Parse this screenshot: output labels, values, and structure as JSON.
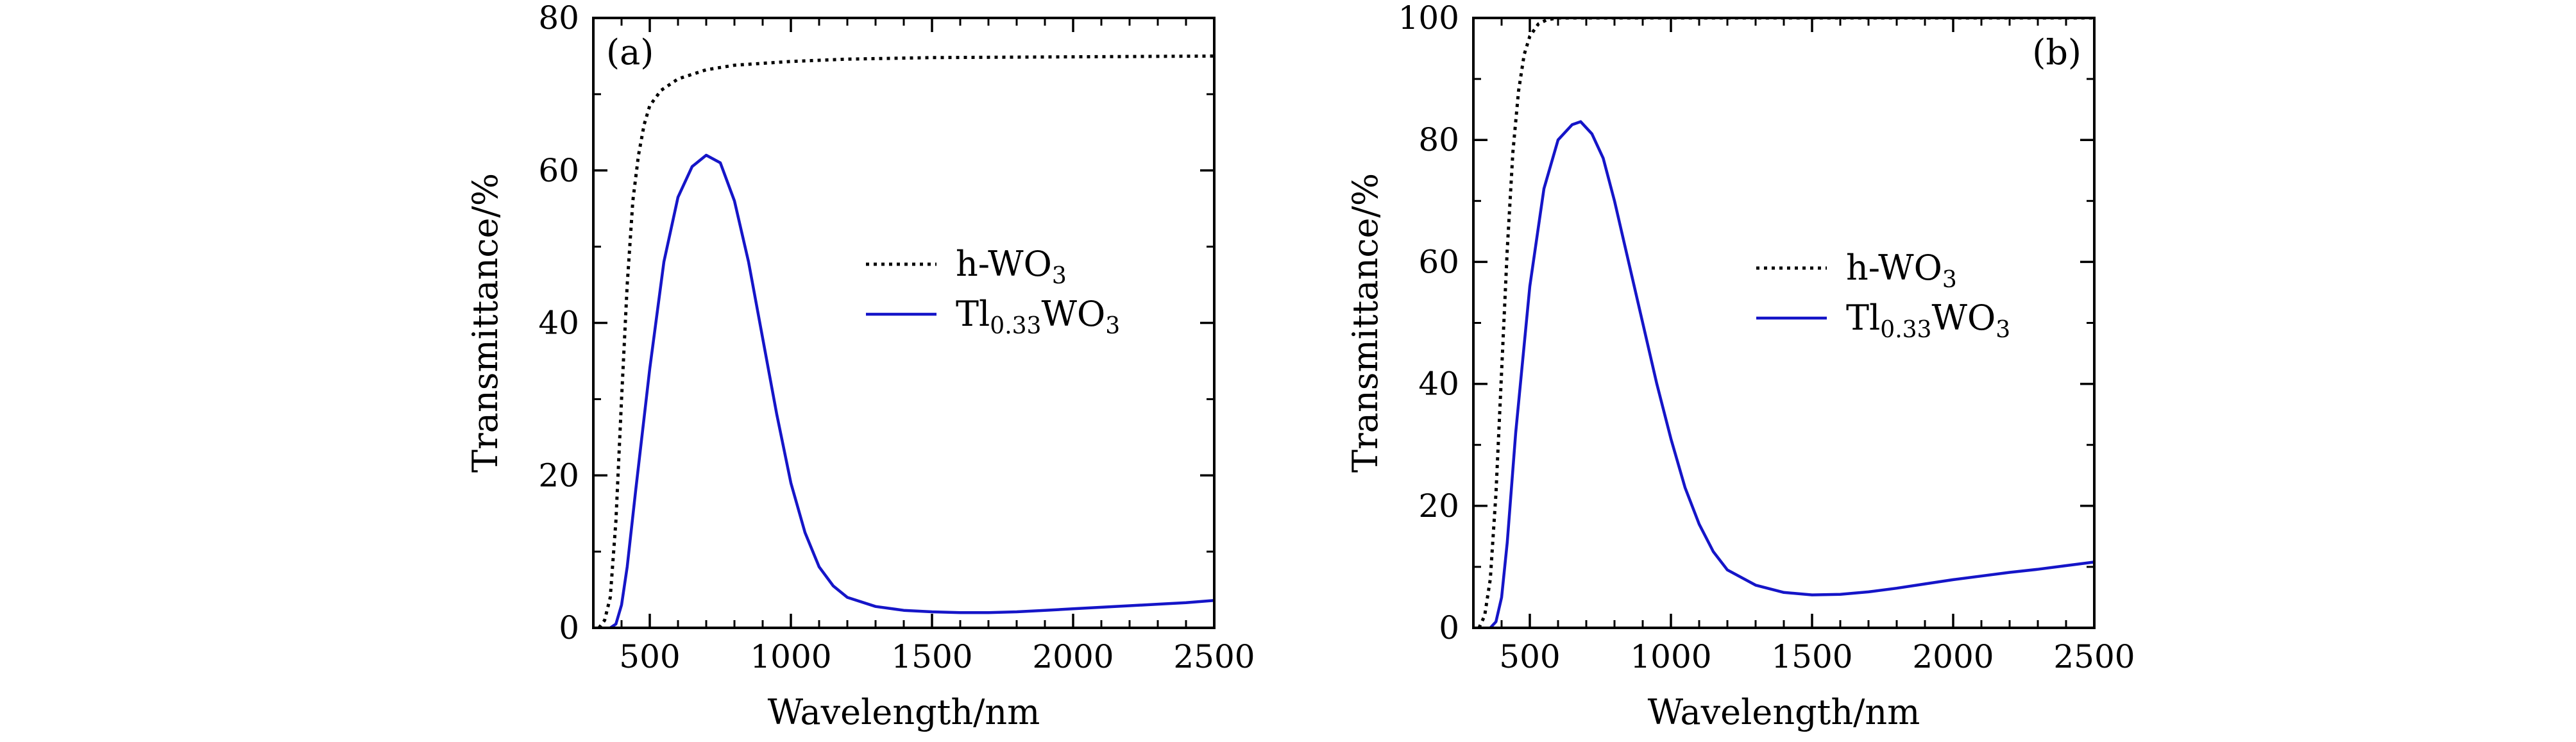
{
  "chart_data": [
    {
      "type": "line",
      "panel_label": "(a)",
      "xlabel": "Wavelength/nm",
      "ylabel": "Transmittance/%",
      "xlim": [
        300,
        2500
      ],
      "ylim": [
        0,
        80
      ],
      "x_ticks": [
        500,
        1000,
        1500,
        2000,
        2500
      ],
      "y_ticks": [
        0,
        20,
        40,
        60,
        80
      ],
      "legend_position": "center-right",
      "legend": [
        {
          "base": "h-WO",
          "sub": "3",
          "tail": ""
        },
        {
          "base": "Tl",
          "sub": "0.33",
          "tail": "WO",
          "sub2": "3"
        }
      ],
      "series": [
        {
          "name": "h-WO3",
          "style": "dotted",
          "color": "#000000",
          "points": [
            [
              320,
              0
            ],
            [
              340,
              1
            ],
            [
              360,
              4
            ],
            [
              380,
              14
            ],
            [
              400,
              30
            ],
            [
              420,
              45
            ],
            [
              440,
              56
            ],
            [
              460,
              62
            ],
            [
              480,
              66
            ],
            [
              500,
              68.5
            ],
            [
              540,
              70.5
            ],
            [
              600,
              72
            ],
            [
              700,
              73.2
            ],
            [
              800,
              73.8
            ],
            [
              1000,
              74.3
            ],
            [
              1200,
              74.6
            ],
            [
              1500,
              74.8
            ],
            [
              2000,
              74.9
            ],
            [
              2500,
              75
            ]
          ]
        },
        {
          "name": "Tl0.33WO3",
          "style": "solid",
          "color": "#1515c8",
          "points": [
            [
              360,
              0
            ],
            [
              380,
              0.5
            ],
            [
              400,
              3
            ],
            [
              420,
              8
            ],
            [
              450,
              18
            ],
            [
              500,
              34
            ],
            [
              550,
              48
            ],
            [
              600,
              56.5
            ],
            [
              650,
              60.5
            ],
            [
              700,
              62
            ],
            [
              750,
              61
            ],
            [
              800,
              56
            ],
            [
              850,
              48
            ],
            [
              900,
              38
            ],
            [
              950,
              28
            ],
            [
              1000,
              19
            ],
            [
              1050,
              12.5
            ],
            [
              1100,
              8
            ],
            [
              1150,
              5.5
            ],
            [
              1200,
              4
            ],
            [
              1300,
              2.8
            ],
            [
              1400,
              2.3
            ],
            [
              1500,
              2.1
            ],
            [
              1600,
              2.0
            ],
            [
              1700,
              2.0
            ],
            [
              1800,
              2.1
            ],
            [
              1900,
              2.3
            ],
            [
              2000,
              2.5
            ],
            [
              2100,
              2.7
            ],
            [
              2200,
              2.9
            ],
            [
              2300,
              3.1
            ],
            [
              2400,
              3.3
            ],
            [
              2500,
              3.6
            ]
          ]
        }
      ]
    },
    {
      "type": "line",
      "panel_label": "(b)",
      "xlabel": "Wavelength/nm",
      "ylabel": "Transmittance/%",
      "xlim": [
        300,
        2500
      ],
      "ylim": [
        0,
        100
      ],
      "x_ticks": [
        500,
        1000,
        1500,
        2000,
        2500
      ],
      "y_ticks": [
        0,
        20,
        40,
        60,
        80,
        100
      ],
      "legend_position": "center-right",
      "legend": [
        {
          "base": "h-WO",
          "sub": "3",
          "tail": ""
        },
        {
          "base": "Tl",
          "sub": "0.33",
          "tail": "WO",
          "sub2": "3"
        }
      ],
      "series": [
        {
          "name": "h-WO3",
          "style": "dotted",
          "color": "#000000",
          "points": [
            [
              320,
              0
            ],
            [
              340,
              2
            ],
            [
              360,
              8
            ],
            [
              380,
              22
            ],
            [
              400,
              42
            ],
            [
              420,
              62
            ],
            [
              440,
              78
            ],
            [
              460,
              88
            ],
            [
              480,
              94
            ],
            [
              500,
              97
            ],
            [
              530,
              99
            ],
            [
              560,
              99.7
            ],
            [
              600,
              100
            ],
            [
              800,
              100
            ],
            [
              2500,
              100
            ]
          ]
        },
        {
          "name": "Tl0.33WO3",
          "style": "solid",
          "color": "#1515c8",
          "points": [
            [
              360,
              0
            ],
            [
              380,
              1
            ],
            [
              400,
              5
            ],
            [
              420,
              14
            ],
            [
              450,
              32
            ],
            [
              500,
              56
            ],
            [
              550,
              72
            ],
            [
              600,
              80
            ],
            [
              650,
              82.5
            ],
            [
              680,
              83
            ],
            [
              720,
              81
            ],
            [
              760,
              77
            ],
            [
              800,
              70
            ],
            [
              850,
              60
            ],
            [
              900,
              50
            ],
            [
              950,
              40
            ],
            [
              1000,
              31
            ],
            [
              1050,
              23
            ],
            [
              1100,
              17
            ],
            [
              1150,
              12.5
            ],
            [
              1200,
              9.5
            ],
            [
              1300,
              7
            ],
            [
              1400,
              5.8
            ],
            [
              1500,
              5.4
            ],
            [
              1600,
              5.5
            ],
            [
              1700,
              5.9
            ],
            [
              1800,
              6.5
            ],
            [
              1900,
              7.2
            ],
            [
              2000,
              7.9
            ],
            [
              2100,
              8.5
            ],
            [
              2200,
              9.1
            ],
            [
              2300,
              9.6
            ],
            [
              2400,
              10.2
            ],
            [
              2500,
              10.8
            ]
          ]
        }
      ]
    }
  ]
}
